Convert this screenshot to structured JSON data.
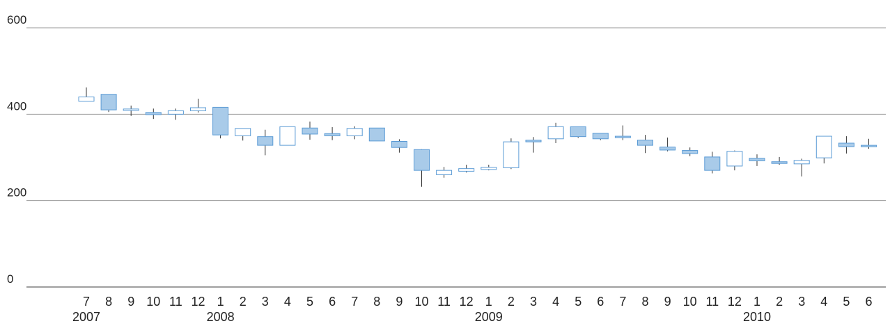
{
  "chart_data": {
    "type": "candlestick",
    "title": "",
    "xlabel": "",
    "ylabel": "",
    "ylim": [
      0,
      600
    ],
    "y_ticks": [
      "600",
      "400",
      "200",
      "0"
    ],
    "grid": true,
    "legend": "none",
    "colors": {
      "up": "#ffffff",
      "down": "#a9cbe9",
      "outline": "#5b9bd5",
      "wick": "#333333",
      "grid": "#9a9a9a",
      "axis": "#666666"
    },
    "years": [
      {
        "label": "2007",
        "index": 0
      },
      {
        "label": "2008",
        "index": 6
      },
      {
        "label": "2009",
        "index": 18
      },
      {
        "label": "2010",
        "index": 30
      }
    ],
    "months": [
      "7",
      "8",
      "9",
      "10",
      "11",
      "12",
      "1",
      "2",
      "3",
      "4",
      "5",
      "6",
      "7",
      "8",
      "9",
      "10",
      "11",
      "12",
      "1",
      "2",
      "3",
      "4",
      "5",
      "6",
      "7",
      "8",
      "9",
      "10",
      "11",
      "12",
      "1",
      "2",
      "3",
      "4",
      "5",
      "6"
    ],
    "candles": [
      {
        "o": 430,
        "c": 440,
        "h": 462,
        "l": 430
      },
      {
        "o": 446,
        "c": 410,
        "h": 446,
        "l": 405
      },
      {
        "o": 411,
        "c": 412,
        "h": 420,
        "l": 396
      },
      {
        "o": 404,
        "c": 399,
        "h": 413,
        "l": 389
      },
      {
        "o": 400,
        "c": 408,
        "h": 413,
        "l": 387
      },
      {
        "o": 408,
        "c": 415,
        "h": 436,
        "l": 404
      },
      {
        "o": 416,
        "c": 352,
        "h": 416,
        "l": 344
      },
      {
        "o": 350,
        "c": 367,
        "h": 367,
        "l": 339
      },
      {
        "o": 348,
        "c": 328,
        "h": 364,
        "l": 305
      },
      {
        "o": 328,
        "c": 371,
        "h": 371,
        "l": 328
      },
      {
        "o": 368,
        "c": 354,
        "h": 383,
        "l": 341
      },
      {
        "o": 355,
        "c": 350,
        "h": 370,
        "l": 340
      },
      {
        "o": 350,
        "c": 367,
        "h": 372,
        "l": 342
      },
      {
        "o": 368,
        "c": 338,
        "h": 368,
        "l": 338
      },
      {
        "o": 337,
        "c": 323,
        "h": 342,
        "l": 311
      },
      {
        "o": 318,
        "c": 270,
        "h": 319,
        "l": 232
      },
      {
        "o": 260,
        "c": 270,
        "h": 278,
        "l": 253
      },
      {
        "o": 268,
        "c": 274,
        "h": 283,
        "l": 265
      },
      {
        "o": 272,
        "c": 277,
        "h": 283,
        "l": 270
      },
      {
        "o": 276,
        "c": 336,
        "h": 344,
        "l": 273
      },
      {
        "o": 340,
        "c": 336,
        "h": 347,
        "l": 311
      },
      {
        "o": 343,
        "c": 371,
        "h": 380,
        "l": 333
      },
      {
        "o": 371,
        "c": 348,
        "h": 371,
        "l": 345
      },
      {
        "o": 356,
        "c": 343,
        "h": 356,
        "l": 340
      },
      {
        "o": 349,
        "c": 348,
        "h": 374,
        "l": 340
      },
      {
        "o": 340,
        "c": 328,
        "h": 352,
        "l": 310
      },
      {
        "o": 324,
        "c": 317,
        "h": 346,
        "l": 314
      },
      {
        "o": 316,
        "c": 309,
        "h": 323,
        "l": 303
      },
      {
        "o": 301,
        "c": 270,
        "h": 313,
        "l": 263
      },
      {
        "o": 280,
        "c": 314,
        "h": 316,
        "l": 270
      },
      {
        "o": 298,
        "c": 292,
        "h": 307,
        "l": 280
      },
      {
        "o": 290,
        "c": 286,
        "h": 301,
        "l": 283
      },
      {
        "o": 285,
        "c": 293,
        "h": 297,
        "l": 256
      },
      {
        "o": 299,
        "c": 349,
        "h": 349,
        "l": 286
      },
      {
        "o": 333,
        "c": 325,
        "h": 349,
        "l": 309
      },
      {
        "o": 328,
        "c": 327,
        "h": 343,
        "l": 320
      }
    ]
  }
}
